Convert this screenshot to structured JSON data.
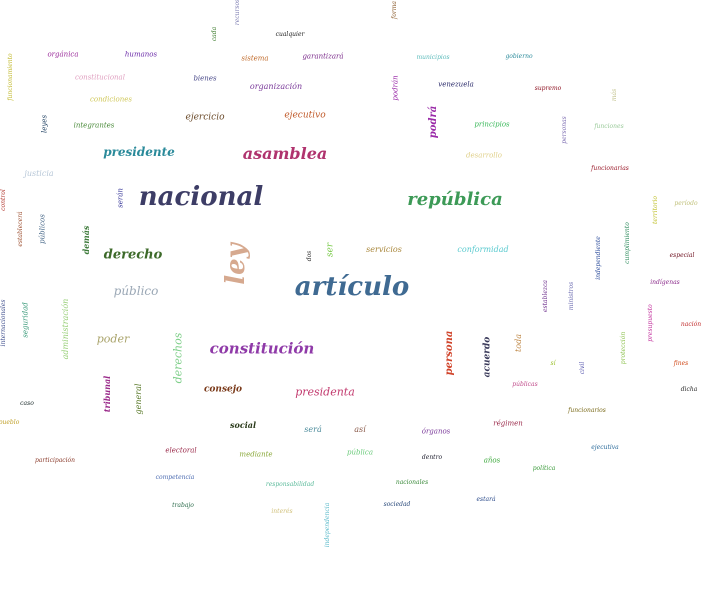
{
  "words": [
    {
      "text": "nacional",
      "color": "#3d3d66"
    },
    {
      "text": "artículo",
      "color": "#3f6a92"
    },
    {
      "text": "ley",
      "color": "#d6a98f"
    },
    {
      "text": "república",
      "color": "#3d9a57"
    },
    {
      "text": "asamblea",
      "color": "#b0336e"
    },
    {
      "text": "constitución",
      "color": "#8f3aa8"
    },
    {
      "text": "derecho",
      "color": "#3d6a2a"
    },
    {
      "text": "presidente",
      "color": "#2a8a9a"
    },
    {
      "text": "público",
      "color": "#9aa7b5"
    },
    {
      "text": "poder",
      "color": "#a9a36a"
    },
    {
      "text": "presidenta",
      "color": "#c23a6e"
    },
    {
      "text": "derechos",
      "color": "#7fcf8a"
    },
    {
      "text": "consejo",
      "color": "#7a3a1a"
    },
    {
      "text": "persona",
      "color": "#d0432a"
    },
    {
      "text": "acuerdo",
      "color": "#3a3a5a"
    },
    {
      "text": "podrá",
      "color": "#9a2aa8"
    },
    {
      "text": "social",
      "color": "#2a3a1a"
    },
    {
      "text": "demás",
      "color": "#3d7a3a"
    },
    {
      "text": "servicios",
      "color": "#a8863a"
    },
    {
      "text": "conformidad",
      "color": "#5acacf"
    },
    {
      "text": "ejercicio",
      "color": "#6a4a2a"
    },
    {
      "text": "ejecutivo",
      "color": "#c05a2a"
    },
    {
      "text": "organización",
      "color": "#7a3a9a"
    },
    {
      "text": "justicia",
      "color": "#b8c8d8"
    },
    {
      "text": "será",
      "color": "#4a8a9a"
    },
    {
      "text": "así",
      "color": "#8a5a4a"
    },
    {
      "text": "órganos",
      "color": "#7a3a9a"
    },
    {
      "text": "régimen",
      "color": "#9a2a4a"
    },
    {
      "text": "pública",
      "color": "#6aca7a"
    },
    {
      "text": "años",
      "color": "#3aa83a"
    },
    {
      "text": "electoral",
      "color": "#9a2a4a"
    },
    {
      "text": "mediante",
      "color": "#8aa83a"
    },
    {
      "text": "principios",
      "color": "#3ab85a"
    },
    {
      "text": "desarrollo",
      "color": "#e0d08a"
    },
    {
      "text": "tribunal",
      "color": "#9a2a8a"
    },
    {
      "text": "general",
      "color": "#5a7a2a"
    },
    {
      "text": "toda",
      "color": "#c08a4a"
    },
    {
      "text": "administración",
      "color": "#9ad07a"
    },
    {
      "text": "seguridad",
      "color": "#3a9a7a"
    },
    {
      "text": "internacionales",
      "color": "#3a4a8a"
    },
    {
      "text": "públicos",
      "color": "#4a6a8a"
    },
    {
      "text": "establecerá",
      "color": "#9a4a2a"
    },
    {
      "text": "control",
      "color": "#b0332a"
    },
    {
      "text": "leyes",
      "color": "#2a4a6a"
    },
    {
      "text": "integrantes",
      "color": "#4a8a3a"
    },
    {
      "text": "condiciones",
      "color": "#d0c85a"
    },
    {
      "text": "constitucional",
      "color": "#e0a0c0"
    },
    {
      "text": "orgánica",
      "color": "#9a2a9a"
    },
    {
      "text": "humanos",
      "color": "#6a2aa8"
    },
    {
      "text": "bienes",
      "color": "#4a4a8a"
    },
    {
      "text": "sistema",
      "color": "#c06a2a"
    },
    {
      "text": "garantizará",
      "color": "#7a2a8a"
    },
    {
      "text": "cualquier",
      "color": "#1a1a1a"
    },
    {
      "text": "municipios",
      "color": "#5ababa"
    },
    {
      "text": "gobierno",
      "color": "#2a8a9a"
    },
    {
      "text": "venezuela",
      "color": "#2a2a6a"
    },
    {
      "text": "supremo",
      "color": "#8a0a1a"
    },
    {
      "text": "podrán",
      "color": "#9a2aa8"
    },
    {
      "text": "forma",
      "color": "#8a5a2a"
    },
    {
      "text": "recursos",
      "color": "#7a7ab0"
    },
    {
      "text": "cada",
      "color": "#3a7a2a"
    },
    {
      "text": "funcionamiento",
      "color": "#c0b82a"
    },
    {
      "text": "funciones",
      "color": "#9aca9a"
    },
    {
      "text": "personas",
      "color": "#7a6ab0"
    },
    {
      "text": "más",
      "color": "#c0c08a"
    },
    {
      "text": "funcionarias",
      "color": "#9a1a2a"
    },
    {
      "text": "territorio",
      "color": "#c0c02a"
    },
    {
      "text": "período",
      "color": "#c0c07a"
    },
    {
      "text": "cumplimiento",
      "color": "#2a8a5a"
    },
    {
      "text": "independiente",
      "color": "#2a4a9a"
    },
    {
      "text": "especial",
      "color": "#6a0a1a"
    },
    {
      "text": "indígenas",
      "color": "#8a2a8a"
    },
    {
      "text": "establezca",
      "color": "#6a2a8a"
    },
    {
      "text": "ministros",
      "color": "#6a6ab0"
    },
    {
      "text": "presupuesto",
      "color": "#c02a9a"
    },
    {
      "text": "nación",
      "color": "#c02a2a"
    },
    {
      "text": "protección",
      "color": "#8ac04a"
    },
    {
      "text": "fines",
      "color": "#d04a1a"
    },
    {
      "text": "civil",
      "color": "#5a5ab0"
    },
    {
      "text": "sí",
      "color": "#9ac02a"
    },
    {
      "text": "públicas",
      "color": "#c04a8a"
    },
    {
      "text": "dicha",
      "color": "#2a2a2a"
    },
    {
      "text": "funcionarios",
      "color": "#7a6a1a"
    },
    {
      "text": "ejecutiva",
      "color": "#2a6a9a"
    },
    {
      "text": "política",
      "color": "#3a9a3a"
    },
    {
      "text": "dentro",
      "color": "#1a1a2a"
    },
    {
      "text": "nacionales",
      "color": "#3a8a3a"
    },
    {
      "text": "estará",
      "color": "#2a4a8a"
    },
    {
      "text": "sociedad",
      "color": "#2a4a7a"
    },
    {
      "text": "responsabilidad",
      "color": "#5aba9a"
    },
    {
      "text": "interés",
      "color": "#d0c07a"
    },
    {
      "text": "independencia",
      "color": "#5abaca"
    },
    {
      "text": "trabajo",
      "color": "#2a6a4a"
    },
    {
      "text": "competencia",
      "color": "#4a6ab0"
    },
    {
      "text": "participación",
      "color": "#8a3a2a"
    },
    {
      "text": "pueblo",
      "color": "#c0a02a"
    },
    {
      "text": "caso",
      "color": "#1a2a2a"
    },
    {
      "text": "dos",
      "color": "#2a2a2a"
    },
    {
      "text": "ser",
      "color": "#7aca4a"
    },
    {
      "text": "serán",
      "color": "#3a3a9a"
    }
  ]
}
